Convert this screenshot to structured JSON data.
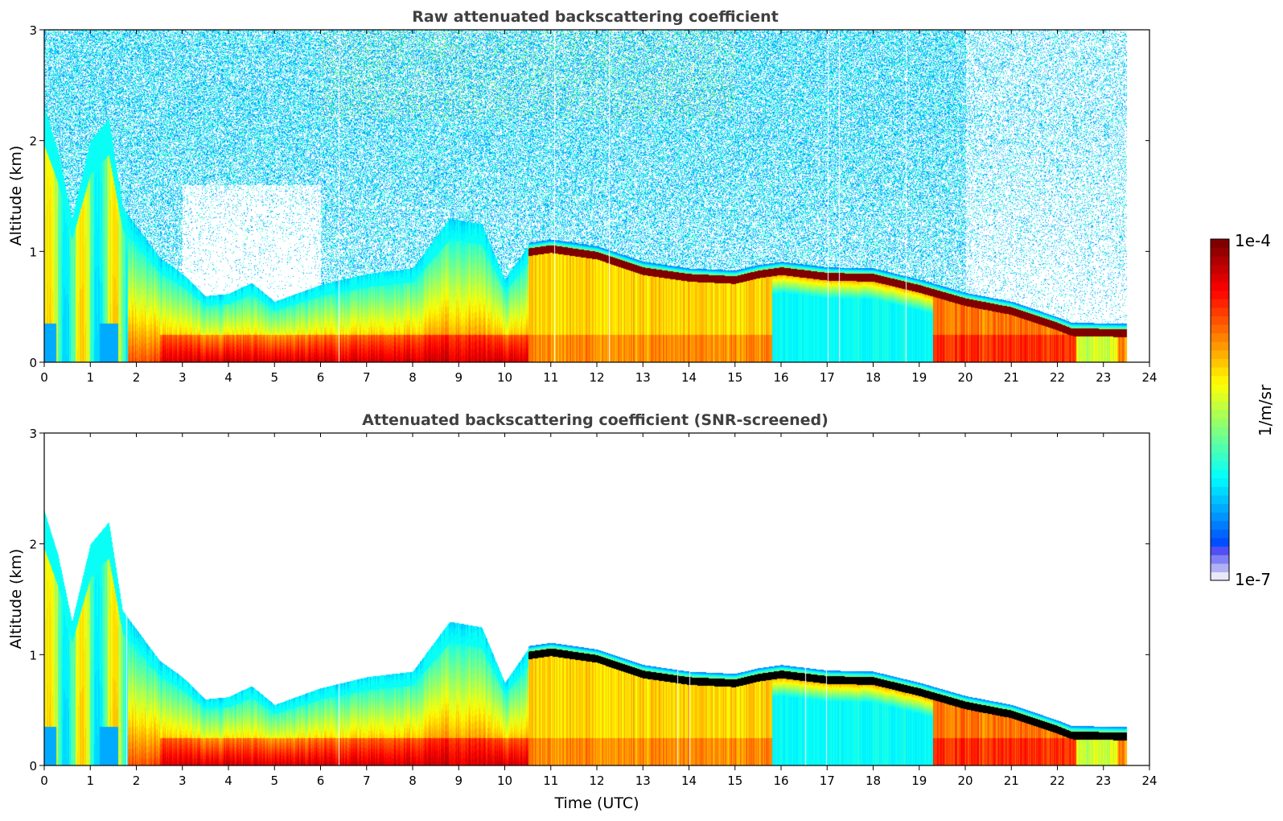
{
  "chart_data": [
    {
      "type": "heatmap",
      "title": "Raw attenuated backscattering coefficient",
      "xlabel": "",
      "ylabel": "Altitude (km)",
      "xlim": [
        0,
        24
      ],
      "ylim": [
        0,
        3
      ],
      "xticks": [
        0,
        1,
        2,
        3,
        4,
        5,
        6,
        7,
        8,
        9,
        10,
        11,
        12,
        13,
        14,
        15,
        16,
        17,
        18,
        19,
        20,
        21,
        22,
        23,
        24
      ],
      "yticks": [
        0,
        1,
        2,
        3
      ],
      "data_end_time": 23.5,
      "screened": false,
      "grid": false,
      "cloud_layer_top_km": [
        [
          10.5,
          1.05
        ],
        [
          11,
          1.08
        ],
        [
          12,
          1.02
        ],
        [
          13,
          0.88
        ],
        [
          14,
          0.82
        ],
        [
          15,
          0.8
        ],
        [
          15.5,
          0.85
        ],
        [
          16,
          0.88
        ],
        [
          17,
          0.83
        ],
        [
          18,
          0.82
        ],
        [
          19,
          0.72
        ],
        [
          20,
          0.6
        ],
        [
          21,
          0.52
        ],
        [
          22,
          0.38
        ],
        [
          22.3,
          0.33
        ],
        [
          23.5,
          0.32
        ]
      ],
      "aerosol_layer_top_km": [
        [
          0,
          2.3
        ],
        [
          0.3,
          1.9
        ],
        [
          0.6,
          1.3
        ],
        [
          1,
          2.0
        ],
        [
          1.4,
          2.2
        ],
        [
          1.7,
          1.4
        ],
        [
          2.5,
          0.95
        ],
        [
          3,
          0.8
        ],
        [
          3.5,
          0.6
        ],
        [
          4,
          0.62
        ],
        [
          4.5,
          0.72
        ],
        [
          5,
          0.55
        ],
        [
          6,
          0.7
        ],
        [
          7,
          0.8
        ],
        [
          8,
          0.85
        ],
        [
          8.8,
          1.3
        ],
        [
          9.5,
          1.25
        ],
        [
          10,
          0.75
        ],
        [
          10.5,
          1.05
        ]
      ]
    },
    {
      "type": "heatmap",
      "title": "Attenuated backscattering coefficient (SNR-screened)",
      "xlabel": "Time (UTC)",
      "ylabel": "Altitude (km)",
      "xlim": [
        0,
        24
      ],
      "ylim": [
        0,
        3
      ],
      "xticks": [
        0,
        1,
        2,
        3,
        4,
        5,
        6,
        7,
        8,
        9,
        10,
        11,
        12,
        13,
        14,
        15,
        16,
        17,
        18,
        19,
        20,
        21,
        22,
        23,
        24
      ],
      "yticks": [
        0,
        1,
        2,
        3
      ],
      "data_end_time": 23.5,
      "screened": true,
      "grid": false
    }
  ],
  "colorbar": {
    "label": "1/m/sr",
    "min_label": "1e-7",
    "max_label": "1e-4",
    "scale": "log",
    "range": [
      1e-07,
      0.0001
    ],
    "colormap": "jet",
    "levels": 40
  }
}
